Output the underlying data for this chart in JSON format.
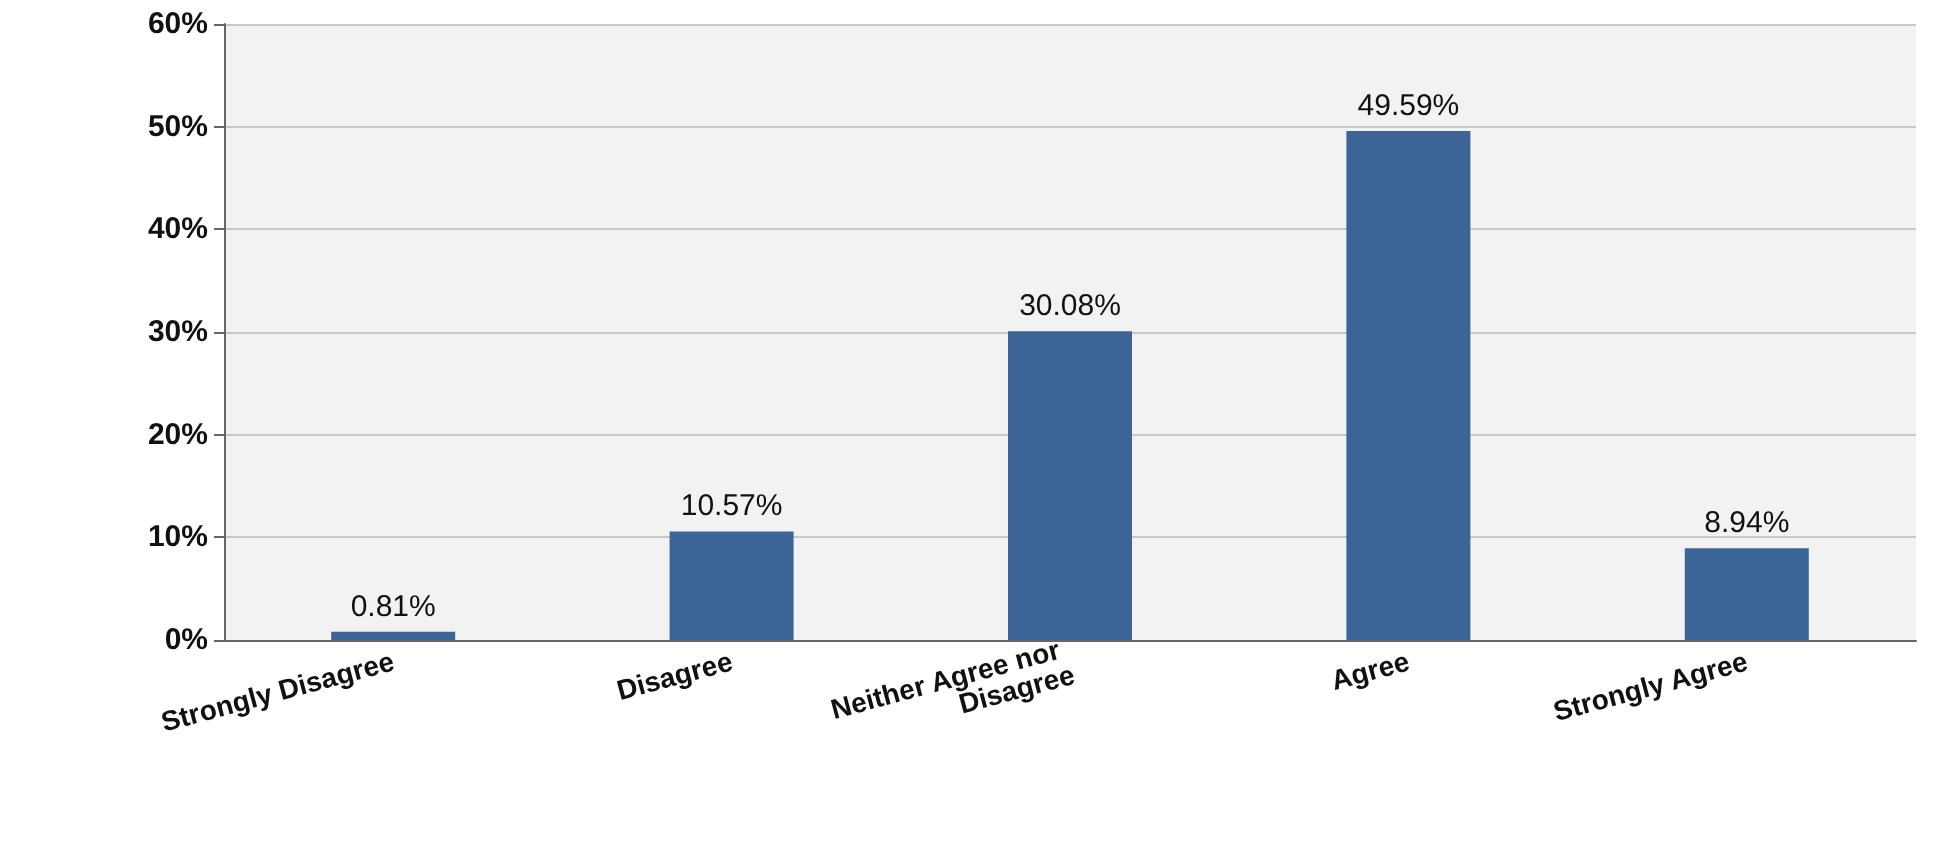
{
  "chart_data": {
    "type": "bar",
    "categories": [
      "Strongly Disagree",
      "Disagree",
      "Neither Agree nor Disagree",
      "Agree",
      "Strongly Agree"
    ],
    "values": [
      0.81,
      10.57,
      30.08,
      49.59,
      8.94
    ],
    "value_labels": [
      "0.81%",
      "10.57%",
      "30.08%",
      "49.59%",
      "8.94%"
    ],
    "color": "#3d6496",
    "ylim": [
      0,
      60
    ],
    "yticks": [
      {
        "value": 0,
        "label": "0%"
      },
      {
        "value": 10,
        "label": "10%"
      },
      {
        "value": 20,
        "label": "20%"
      },
      {
        "value": 30,
        "label": "30%"
      },
      {
        "value": 40,
        "label": "40%"
      },
      {
        "value": 50,
        "label": "50%"
      },
      {
        "value": 60,
        "label": "60%"
      }
    ],
    "grid": "y"
  }
}
